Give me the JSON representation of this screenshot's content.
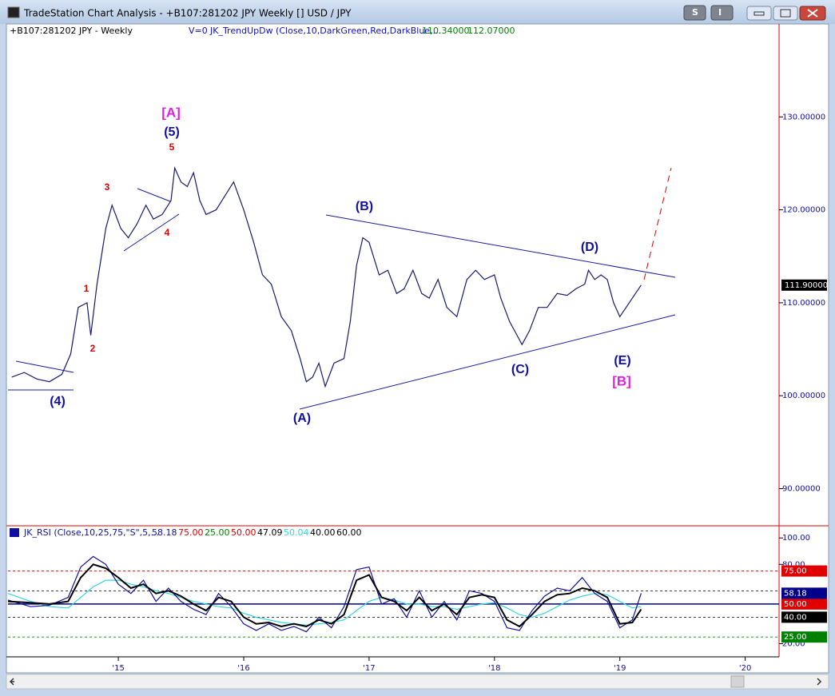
{
  "window": {
    "title": "TradeStation Chart Analysis - +B107:281202 JPY Weekly [] USD / JPY",
    "buttons": [
      "S",
      "I"
    ]
  },
  "chart_data": [
    {
      "type": "line",
      "title": "+B107:281202 JPY - Weekly",
      "indicator": "V=0",
      "study": "JK_TrendUpDw (Close,10,DarkGreen,Red,DarkBlue,...",
      "study_values": [
        {
          "value": 110.34,
          "label": "110.34000"
        },
        {
          "value": 112.07,
          "label": "112.07000"
        }
      ],
      "x": [
        2014.15,
        2014.25,
        2014.35,
        2014.45,
        2014.55,
        2014.62,
        2014.68,
        2014.75,
        2014.78,
        2014.83,
        2014.9,
        2014.95,
        2015.02,
        2015.08,
        2015.15,
        2015.22,
        2015.28,
        2015.35,
        2015.42,
        2015.45,
        2015.5,
        2015.55,
        2015.6,
        2015.65,
        2015.7,
        2015.78,
        2015.85,
        2015.92,
        2016.0,
        2016.08,
        2016.15,
        2016.22,
        2016.3,
        2016.38,
        2016.45,
        2016.5,
        2016.55,
        2016.6,
        2016.65,
        2016.72,
        2016.8,
        2016.85,
        2016.9,
        2016.95,
        2017.0,
        2017.08,
        2017.15,
        2017.22,
        2017.28,
        2017.35,
        2017.42,
        2017.48,
        2017.55,
        2017.62,
        2017.7,
        2017.78,
        2017.85,
        2017.92,
        2018.0,
        2018.05,
        2018.12,
        2018.18,
        2018.22,
        2018.28,
        2018.35,
        2018.42,
        2018.5,
        2018.58,
        2018.65,
        2018.72,
        2018.75,
        2018.8,
        2018.85,
        2018.9,
        2018.95,
        2019.0,
        2019.05,
        2019.1,
        2019.17
      ],
      "series": [
        {
          "color": "#1a1a6e",
          "values": [
            102.0,
            102.5,
            101.8,
            101.5,
            102.3,
            104.5,
            109.5,
            110.0,
            106.5,
            112.0,
            118.0,
            120.5,
            118.0,
            117.0,
            118.5,
            120.5,
            119.0,
            119.5,
            121.0,
            124.5,
            123.0,
            122.5,
            124.0,
            121.0,
            119.5,
            120.0,
            121.5,
            123.0,
            120.0,
            116.5,
            113.0,
            112.0,
            108.5,
            107.0,
            104.0,
            101.5,
            102.0,
            103.5,
            101.0,
            103.5,
            104.0,
            108.0,
            114.0,
            117.0,
            116.5,
            113.0,
            113.5,
            111.0,
            111.5,
            113.5,
            111.0,
            110.5,
            112.5,
            109.5,
            108.5,
            112.5,
            113.5,
            112.5,
            113.0,
            110.5,
            108.0,
            106.5,
            105.5,
            107.0,
            109.5,
            109.5,
            111.0,
            110.8,
            111.5,
            112.0,
            113.5,
            112.5,
            113.0,
            112.5,
            110.0,
            108.5,
            109.5,
            110.5,
            111.9
          ]
        }
      ],
      "last_value": {
        "value": 111.9,
        "label": "111.90000"
      },
      "xlim": [
        2014.12,
        2020.27
      ],
      "ylim": [
        86,
        140
      ],
      "yticks": [
        {
          "value": 90,
          "label": "90.00000"
        },
        {
          "value": 100,
          "label": "100.00000"
        },
        {
          "value": 110,
          "label": "110.00000"
        },
        {
          "value": 120,
          "label": "120.00000"
        },
        {
          "value": 130,
          "label": "130.00000"
        }
      ],
      "annotations": [
        "[A]",
        "(5)",
        "5",
        "3",
        "4",
        "1",
        "2",
        "(4)",
        "(B)",
        "(A)",
        "(C)",
        "(D)",
        "(E)",
        "[B]"
      ]
    },
    {
      "type": "line",
      "title": "JK_RSI (Close,10,25,75,\"S\",5,...",
      "study_values": [
        {
          "value": 58.18,
          "label": "58.18",
          "color": "#1010a0"
        },
        {
          "value": 75,
          "label": "75.00",
          "color": "#e00000"
        },
        {
          "value": 25,
          "label": "25.00",
          "color": "#008000"
        },
        {
          "value": 50,
          "label": "50.00",
          "color": "#e00000"
        },
        {
          "value": 47.09,
          "label": "47.09",
          "color": "#000000"
        },
        {
          "value": 50.04,
          "label": "50.04",
          "color": "#33d6e0"
        },
        {
          "value": 40,
          "label": "40.00",
          "color": "#000000"
        },
        {
          "value": 60,
          "label": "60.00",
          "color": "#000000"
        }
      ],
      "x": [
        2014.12,
        2014.3,
        2014.45,
        2014.6,
        2014.7,
        2014.8,
        2014.9,
        2015.0,
        2015.1,
        2015.2,
        2015.3,
        2015.4,
        2015.5,
        2015.6,
        2015.7,
        2015.8,
        2015.9,
        2016.0,
        2016.1,
        2016.2,
        2016.3,
        2016.4,
        2016.5,
        2016.6,
        2016.7,
        2016.8,
        2016.9,
        2017.0,
        2017.1,
        2017.2,
        2017.3,
        2017.4,
        2017.5,
        2017.6,
        2017.7,
        2017.8,
        2017.9,
        2018.0,
        2018.1,
        2018.2,
        2018.3,
        2018.4,
        2018.5,
        2018.6,
        2018.7,
        2018.8,
        2018.9,
        2019.0,
        2019.1,
        2019.17
      ],
      "series": [
        {
          "color": "#33d6e0",
          "values": [
            58,
            52,
            48,
            47,
            55,
            63,
            68,
            68,
            65,
            63,
            60,
            58,
            55,
            52,
            50,
            48,
            47,
            43,
            40,
            38,
            36,
            35,
            34,
            35,
            36,
            38,
            45,
            52,
            55,
            53,
            50,
            50,
            48,
            48,
            46,
            48,
            50,
            51,
            47,
            42,
            40,
            43,
            48,
            53,
            56,
            58,
            57,
            52,
            47,
            48
          ]
        },
        {
          "color": "#1010a0",
          "values": [
            53,
            48,
            49,
            55,
            78,
            86,
            80,
            65,
            58,
            68,
            52,
            62,
            52,
            46,
            42,
            58,
            48,
            35,
            30,
            35,
            30,
            33,
            29,
            40,
            32,
            48,
            76,
            78,
            50,
            54,
            40,
            60,
            40,
            52,
            38,
            60,
            58,
            52,
            32,
            30,
            45,
            56,
            62,
            60,
            70,
            58,
            52,
            32,
            38,
            58.18
          ]
        },
        {
          "color": "#000000",
          "values": [
            52,
            51,
            50,
            52,
            70,
            80,
            77,
            70,
            62,
            65,
            58,
            60,
            56,
            50,
            45,
            55,
            52,
            40,
            35,
            36,
            33,
            35,
            33,
            38,
            35,
            42,
            68,
            72,
            55,
            52,
            45,
            55,
            45,
            50,
            42,
            55,
            57,
            55,
            38,
            33,
            42,
            52,
            57,
            58,
            62,
            60,
            55,
            35,
            36,
            46
          ]
        }
      ],
      "levels": [
        {
          "value": 75,
          "label": "75.00",
          "color": "#e00000",
          "line_color": "#e00000",
          "dashed": true
        },
        {
          "value": 60,
          "line_color": "#000000",
          "dashed": true
        },
        {
          "value": 50,
          "label": "50.00",
          "color": "#e00000",
          "line_color": "#00008b",
          "dashed": false
        },
        {
          "value": 40,
          "label": "40.00",
          "color": "#000000",
          "line_color": "#000000",
          "dashed": true
        },
        {
          "value": 25,
          "label": "25.00",
          "color": "#008000",
          "line_color": "#008000",
          "dashed": true
        }
      ],
      "current": {
        "value": 58.18,
        "label": "58.18",
        "color": "#00008b"
      },
      "xlim": [
        2014.12,
        2020.27
      ],
      "ylim": [
        10,
        108
      ],
      "yticks": [
        {
          "value": 100,
          "label": "100.00"
        },
        {
          "value": 80,
          "label": "80.00"
        },
        {
          "value": 20,
          "label": "20.00"
        }
      ],
      "xticks": [
        {
          "value": 2015,
          "label": "'15"
        },
        {
          "value": 2016,
          "label": "'16"
        },
        {
          "value": 2017,
          "label": "'17"
        },
        {
          "value": 2018,
          "label": "'18"
        },
        {
          "value": 2019,
          "label": "'19"
        },
        {
          "value": 2020,
          "label": "'20"
        }
      ]
    }
  ]
}
